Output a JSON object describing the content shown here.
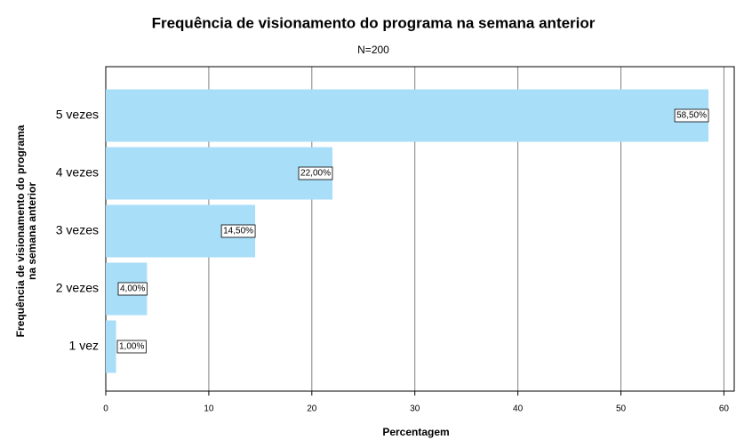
{
  "chart_data": {
    "type": "barh",
    "title": "Frequência de visionamento do programa na semana anterior",
    "subtitle": "N=200",
    "xlabel": "Percentagem",
    "ylabel": [
      "Frequência de visionamento do programa",
      "na semana anterior"
    ],
    "categories": [
      "5 vezes",
      "4 vezes",
      "3 vezes",
      "2 vezes",
      "1 vez"
    ],
    "values": [
      58.5,
      22,
      14.5,
      4,
      1
    ],
    "value_labels": [
      "58,50%",
      "22,00%",
      "14,50%",
      "4,00%",
      "1,00%"
    ],
    "color": "#a8def8",
    "xlim": [
      0,
      61
    ],
    "xticks": [
      0,
      10,
      20,
      30,
      40,
      50,
      60
    ],
    "grid": true
  }
}
